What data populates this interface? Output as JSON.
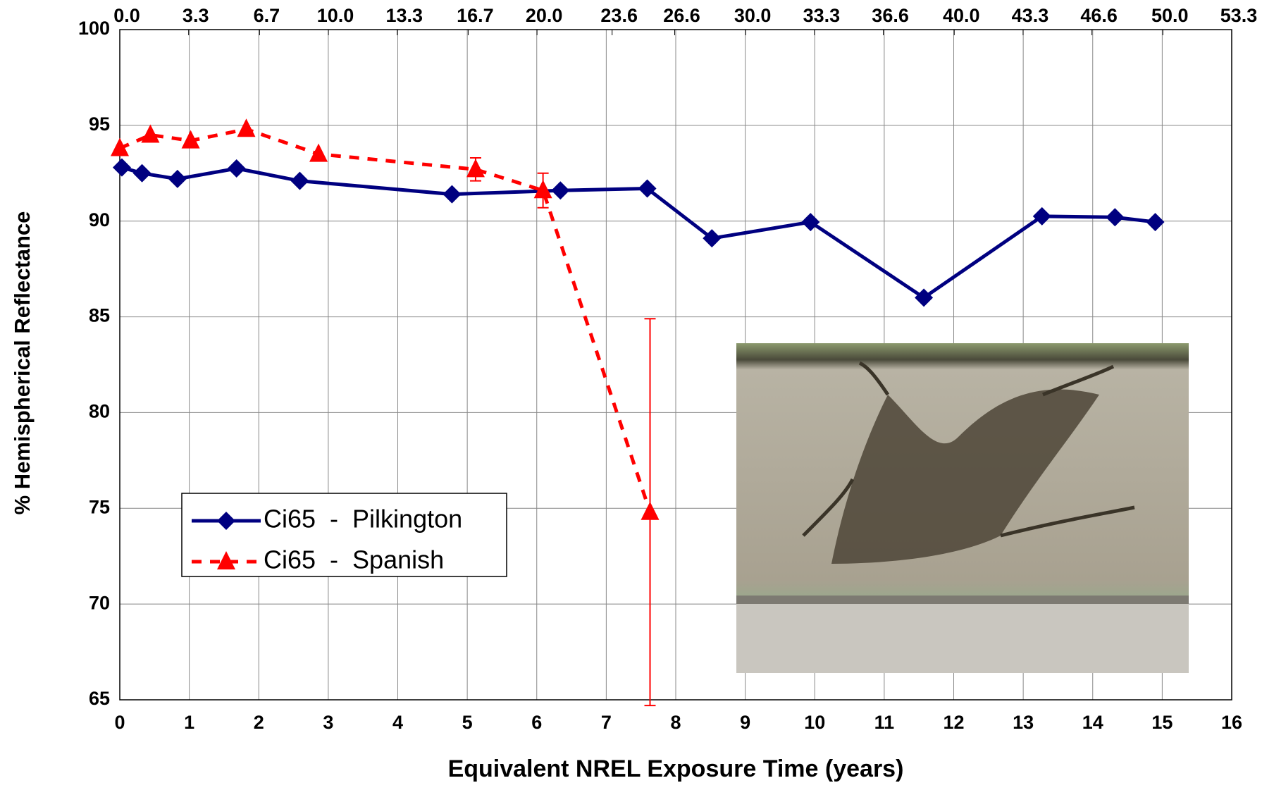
{
  "chart_data": {
    "type": "line",
    "xlabel": "Equivalent NREL Exposure Time (years)",
    "ylabel": "% Hemispherical Reflectance",
    "xlim": [
      0,
      16
    ],
    "xticks": [
      0,
      1,
      2,
      3,
      4,
      5,
      6,
      7,
      8,
      9,
      10,
      11,
      12,
      13,
      14,
      15,
      16
    ],
    "ylim": [
      65,
      100
    ],
    "yticks": [
      65,
      70,
      75,
      80,
      85,
      90,
      95,
      100
    ],
    "x2lim": [
      0,
      53.3
    ],
    "x2ticks": [
      {
        "value": 0,
        "label": "0.0"
      },
      {
        "value": 3.3,
        "label": "3.3"
      },
      {
        "value": 6.7,
        "label": "6.7"
      },
      {
        "value": 10,
        "label": "10.0"
      },
      {
        "value": 13.3,
        "label": "13.3"
      },
      {
        "value": 16.7,
        "label": "16.7"
      },
      {
        "value": 20,
        "label": "20.0"
      },
      {
        "value": 23.6,
        "label": "23.6"
      },
      {
        "value": 26.6,
        "label": "26.6"
      },
      {
        "value": 30,
        "label": "30.0"
      },
      {
        "value": 33.3,
        "label": "33.3"
      },
      {
        "value": 36.6,
        "label": "36.6"
      },
      {
        "value": 40,
        "label": "40.0"
      },
      {
        "value": 43.3,
        "label": "43.3"
      },
      {
        "value": 46.6,
        "label": "46.6"
      },
      {
        "value": 50,
        "label": "50.0"
      },
      {
        "value": 53.3,
        "label": "53.3"
      }
    ],
    "grid": true,
    "series": [
      {
        "name": "Ci65  -  Pilkington",
        "color": "#000080",
        "marker": "diamond",
        "dashed": false,
        "x": [
          0.03,
          0.32,
          0.83,
          1.68,
          2.59,
          4.78,
          6.34,
          7.59,
          8.52,
          9.94,
          11.57,
          13.27,
          14.32,
          14.9
        ],
        "values": [
          92.8,
          92.5,
          92.2,
          92.75,
          92.1,
          91.4,
          91.6,
          91.7,
          89.1,
          89.95,
          86.0,
          90.25,
          90.2,
          89.95
        ]
      },
      {
        "name": "Ci65  -  Spanish",
        "color": "#ff0000",
        "marker": "triangle",
        "dashed": true,
        "x": [
          0.0,
          0.44,
          1.02,
          1.82,
          2.86,
          5.12,
          6.09,
          7.63
        ],
        "values": [
          93.8,
          94.5,
          94.2,
          94.8,
          93.5,
          92.7,
          91.6,
          74.8
        ],
        "errors": [
          null,
          null,
          null,
          null,
          null,
          0.6,
          0.9,
          10.1
        ]
      }
    ]
  }
}
